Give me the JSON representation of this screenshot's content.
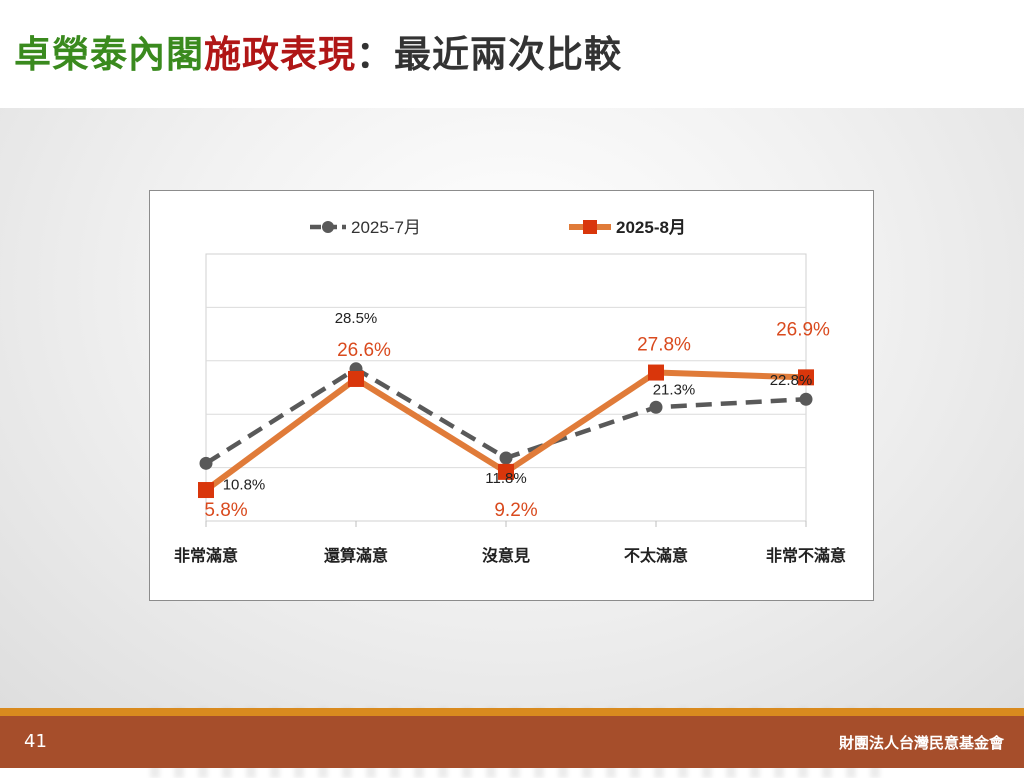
{
  "title": {
    "part1": "卓榮泰內閣",
    "part2": "施政表現",
    "part3": "：最近兩次比較"
  },
  "colors": {
    "title_green": "#3a8a1e",
    "title_red": "#b01616",
    "title_dark": "#333333",
    "series_july": "#595959",
    "series_aug": "#e07b39",
    "series_aug_marker": "#d9360b",
    "label_aug": "#d94a1e"
  },
  "chart_data": {
    "type": "line",
    "categories": [
      "非常滿意",
      "還算滿意",
      "沒意見",
      "不太滿意",
      "非常不滿意"
    ],
    "series": [
      {
        "name": "2025-7月",
        "values": [
          10.8,
          28.5,
          11.8,
          21.3,
          22.8
        ],
        "labels": [
          "10.8%",
          "28.5%",
          "11.8%",
          "21.3%",
          "22.8%"
        ],
        "style": "dashed",
        "marker": "circle"
      },
      {
        "name": "2025-8月",
        "values": [
          5.8,
          26.6,
          9.2,
          27.8,
          26.9
        ],
        "labels": [
          "5.8%",
          "26.6%",
          "9.2%",
          "27.8%",
          "26.9%"
        ],
        "style": "solid",
        "marker": "square"
      }
    ],
    "ylim": [
      0,
      50
    ],
    "grid": true,
    "legend": "top-center",
    "xlabel": "",
    "ylabel": ""
  },
  "footer": {
    "page_number": "41",
    "organization": "財團法人台灣民意基金會"
  }
}
